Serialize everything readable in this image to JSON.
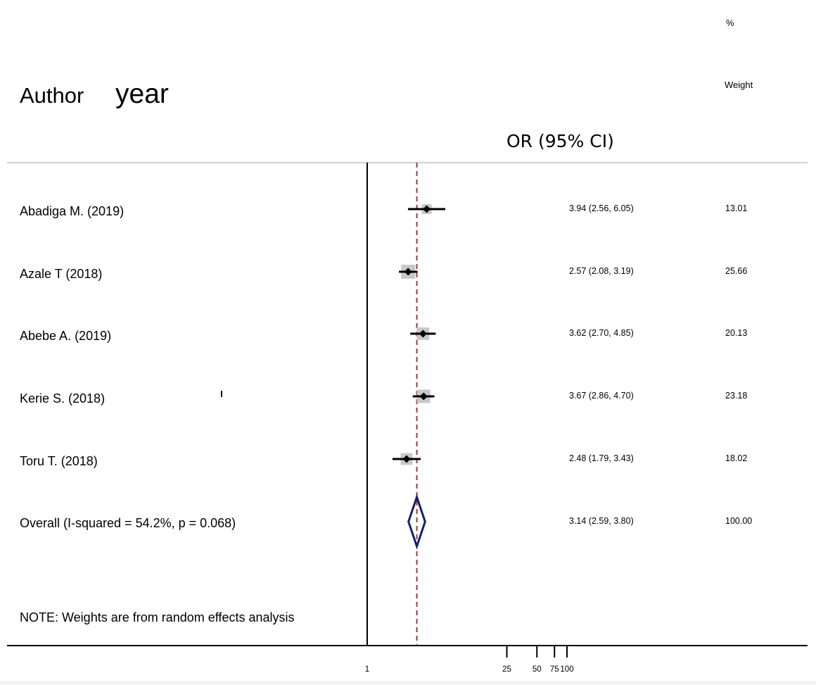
{
  "header": {
    "author_label": "Author",
    "year_label": "year",
    "percent_label": "%",
    "weight_label": "Weight",
    "or_label": "OR (95% CI)"
  },
  "note": "NOTE: Weights are from random effects analysis",
  "colors": {
    "reference_line": "#000000",
    "pooled_line": "#9b3a3a",
    "weight_box": "#c8c8c8",
    "diamond": "#1a1f6e",
    "ci_line": "#000000",
    "separator": "#d0d0d0"
  },
  "chart_data": {
    "type": "forest",
    "xlabel": "",
    "x_ticks": [
      "1",
      "25",
      "50",
      "75",
      "100"
    ],
    "x_tick_values": [
      1,
      25,
      50,
      75,
      100
    ],
    "reference_value": 1,
    "pooled_value": 3.14,
    "studies": [
      {
        "label": "Abadiga M. (2019)",
        "or": 3.94,
        "lower": 2.56,
        "upper": 6.05,
        "or_text": "3.94 (2.56, 6.05)",
        "weight": 13.01,
        "weight_text": "13.01"
      },
      {
        "label": "Azale T (2018)",
        "or": 2.57,
        "lower": 2.08,
        "upper": 3.19,
        "or_text": "2.57 (2.08, 3.19)",
        "weight": 25.66,
        "weight_text": "25.66"
      },
      {
        "label": "Abebe A. (2019)",
        "or": 3.62,
        "lower": 2.7,
        "upper": 4.85,
        "or_text": "3.62 (2.70, 4.85)",
        "weight": 20.13,
        "weight_text": "20.13"
      },
      {
        "label": "Kerie S. (2018)",
        "or": 3.67,
        "lower": 2.86,
        "upper": 4.7,
        "or_text": "3.67 (2.86, 4.70)",
        "weight": 23.18,
        "weight_text": "23.18"
      },
      {
        "label": "Toru T. (2018)",
        "or": 2.48,
        "lower": 1.79,
        "upper": 3.43,
        "or_text": "2.48 (1.79, 3.43)",
        "weight": 18.02,
        "weight_text": "18.02"
      }
    ],
    "overall": {
      "label": "Overall  (I-squared = 54.2%, p = 0.068)",
      "or": 3.14,
      "lower": 2.59,
      "upper": 3.8,
      "or_text": "3.14 (2.59, 3.80)",
      "weight": 100.0,
      "weight_text": "100.00"
    }
  }
}
